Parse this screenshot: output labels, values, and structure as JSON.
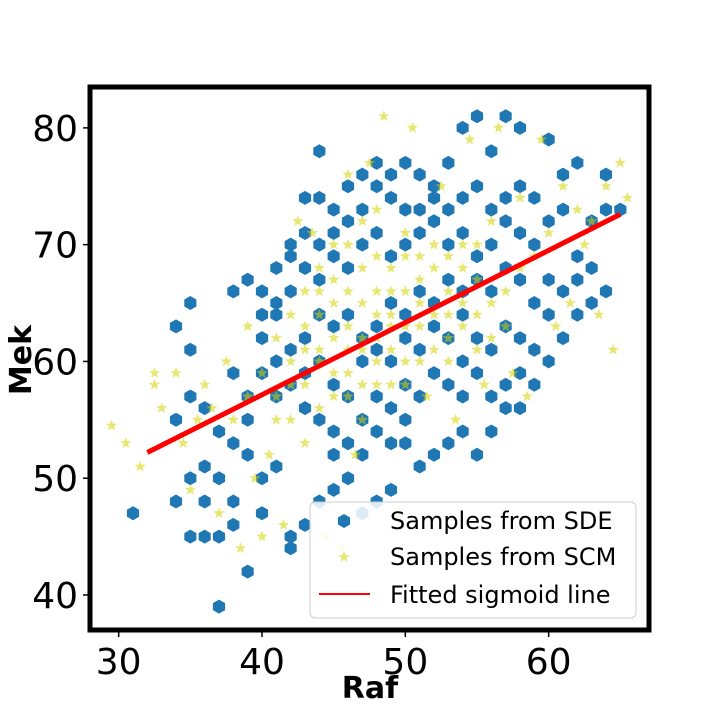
{
  "chart_data": {
    "type": "scatter",
    "xlabel": "Raf",
    "ylabel": "Mek",
    "xlim": [
      28,
      67
    ],
    "ylim": [
      37,
      83.5
    ],
    "xticks": [
      "30",
      "40",
      "50",
      "60"
    ],
    "xtick_values": [
      30,
      40,
      50,
      60
    ],
    "yticks": [
      "40",
      "50",
      "60",
      "70",
      "80"
    ],
    "ytick_values": [
      40,
      50,
      60,
      70,
      80
    ],
    "legend_position": "lower right",
    "series": [
      {
        "name": "Samples from SDE",
        "marker": "hexagon",
        "color": "#1f77b4",
        "points": [
          [
            31,
            47
          ],
          [
            34,
            48
          ],
          [
            35,
            45
          ],
          [
            36,
            45
          ],
          [
            37,
            45
          ],
          [
            37,
            39
          ],
          [
            39,
            42
          ],
          [
            35,
            50
          ],
          [
            36,
            51
          ],
          [
            36,
            48
          ],
          [
            34,
            55
          ],
          [
            35,
            57
          ],
          [
            35,
            61
          ],
          [
            35,
            65
          ],
          [
            34,
            63
          ],
          [
            36,
            56
          ],
          [
            37,
            54
          ],
          [
            38,
            59
          ],
          [
            38,
            66
          ],
          [
            39,
            67
          ],
          [
            38,
            48
          ],
          [
            38,
            46
          ],
          [
            40,
            47
          ],
          [
            40,
            64
          ],
          [
            41,
            65
          ],
          [
            42,
            70
          ],
          [
            43,
            74
          ],
          [
            44,
            74
          ],
          [
            44,
            78
          ],
          [
            45,
            73
          ],
          [
            46,
            75
          ],
          [
            47,
            76
          ],
          [
            48,
            77
          ],
          [
            49,
            74
          ],
          [
            50,
            73
          ],
          [
            51,
            76
          ],
          [
            52,
            75
          ],
          [
            53,
            77
          ],
          [
            54,
            80
          ],
          [
            55,
            81
          ],
          [
            56,
            78
          ],
          [
            57,
            81
          ],
          [
            58,
            80
          ],
          [
            60,
            79
          ],
          [
            61,
            76
          ],
          [
            62,
            77
          ],
          [
            64,
            73
          ],
          [
            65,
            73
          ],
          [
            64,
            76
          ],
          [
            63,
            72
          ],
          [
            62,
            69
          ],
          [
            63,
            68
          ],
          [
            64,
            66
          ],
          [
            62,
            64
          ],
          [
            61,
            62
          ],
          [
            60,
            64
          ],
          [
            59,
            58
          ],
          [
            58,
            59
          ],
          [
            57,
            56
          ],
          [
            56,
            54
          ],
          [
            55,
            52
          ],
          [
            54,
            54
          ],
          [
            53,
            53
          ],
          [
            52,
            52
          ],
          [
            51,
            51
          ],
          [
            50,
            53
          ],
          [
            49,
            49
          ],
          [
            48,
            48
          ],
          [
            47,
            47
          ],
          [
            46,
            50
          ],
          [
            45,
            49
          ],
          [
            44,
            48
          ],
          [
            43,
            46
          ],
          [
            42,
            45
          ],
          [
            42,
            44
          ],
          [
            41,
            51
          ],
          [
            40,
            50
          ],
          [
            39,
            55
          ],
          [
            39,
            57
          ],
          [
            40,
            59
          ],
          [
            41,
            57
          ],
          [
            42,
            58
          ],
          [
            43,
            56
          ],
          [
            44,
            60
          ],
          [
            45,
            58
          ],
          [
            46,
            57
          ],
          [
            47,
            55
          ],
          [
            48,
            57
          ],
          [
            49,
            56
          ],
          [
            50,
            58
          ],
          [
            51,
            57
          ],
          [
            52,
            59
          ],
          [
            53,
            58
          ],
          [
            54,
            60
          ],
          [
            55,
            62
          ],
          [
            56,
            61
          ],
          [
            57,
            63
          ],
          [
            58,
            62
          ],
          [
            59,
            65
          ],
          [
            60,
            67
          ],
          [
            59,
            70
          ],
          [
            58,
            71
          ],
          [
            57,
            72
          ],
          [
            56,
            70
          ],
          [
            55,
            69
          ],
          [
            54,
            71
          ],
          [
            53,
            70
          ],
          [
            52,
            72
          ],
          [
            51,
            71
          ],
          [
            50,
            70
          ],
          [
            49,
            69
          ],
          [
            48,
            71
          ],
          [
            47,
            70
          ],
          [
            46,
            68
          ],
          [
            45,
            69
          ],
          [
            44,
            67
          ],
          [
            43,
            68
          ],
          [
            42,
            66
          ],
          [
            41,
            64
          ],
          [
            40,
            62
          ],
          [
            43,
            62
          ],
          [
            44,
            64
          ],
          [
            45,
            63
          ],
          [
            46,
            64
          ],
          [
            47,
            62
          ],
          [
            48,
            63
          ],
          [
            49,
            65
          ],
          [
            50,
            64
          ],
          [
            51,
            66
          ],
          [
            52,
            65
          ],
          [
            53,
            67
          ],
          [
            54,
            66
          ],
          [
            55,
            67
          ],
          [
            56,
            66
          ],
          [
            57,
            68
          ],
          [
            58,
            67
          ],
          [
            47,
            60
          ],
          [
            48,
            61
          ],
          [
            49,
            60
          ],
          [
            50,
            62
          ],
          [
            51,
            61
          ],
          [
            52,
            63
          ],
          [
            53,
            62
          ],
          [
            54,
            64
          ],
          [
            45,
            54
          ],
          [
            46,
            53
          ],
          [
            47,
            52
          ],
          [
            48,
            54
          ],
          [
            49,
            53
          ],
          [
            50,
            55
          ],
          [
            41,
            60
          ],
          [
            42,
            61
          ],
          [
            43,
            59
          ],
          [
            44,
            55
          ],
          [
            45,
            52
          ],
          [
            39,
            52
          ],
          [
            38,
            53
          ],
          [
            37,
            50
          ],
          [
            61,
            73
          ],
          [
            60,
            72
          ],
          [
            59,
            74
          ],
          [
            58,
            75
          ],
          [
            57,
            74
          ],
          [
            56,
            73
          ],
          [
            55,
            75
          ],
          [
            54,
            74
          ],
          [
            53,
            73
          ],
          [
            52,
            74
          ],
          [
            51,
            73
          ],
          [
            50,
            77
          ],
          [
            49,
            76
          ],
          [
            48,
            75
          ],
          [
            47,
            73
          ],
          [
            46,
            72
          ],
          [
            45,
            71
          ],
          [
            44,
            70
          ],
          [
            43,
            71
          ],
          [
            42,
            69
          ],
          [
            41,
            68
          ],
          [
            40,
            66
          ],
          [
            61,
            66
          ],
          [
            62,
            67
          ],
          [
            63,
            65
          ],
          [
            60,
            60
          ],
          [
            59,
            61
          ],
          [
            58,
            56
          ],
          [
            57,
            58
          ],
          [
            56,
            57
          ],
          [
            55,
            59
          ],
          [
            54,
            57
          ]
        ]
      },
      {
        "name": "Samples from SCM",
        "marker": "star",
        "color": "#d4d400",
        "points": [
          [
            29.5,
            54.5
          ],
          [
            30.5,
            53
          ],
          [
            31.5,
            51
          ],
          [
            32.5,
            58
          ],
          [
            33,
            56
          ],
          [
            32.5,
            59
          ],
          [
            34,
            59
          ],
          [
            34.5,
            53
          ],
          [
            35,
            49
          ],
          [
            35.5,
            55
          ],
          [
            36,
            58
          ],
          [
            36.5,
            56
          ],
          [
            37,
            47
          ],
          [
            37.5,
            60
          ],
          [
            38,
            55
          ],
          [
            38.5,
            44
          ],
          [
            39,
            63
          ],
          [
            39.5,
            50
          ],
          [
            40,
            45
          ],
          [
            40.5,
            52
          ],
          [
            41,
            55
          ],
          [
            41.5,
            46
          ],
          [
            42,
            58
          ],
          [
            42.5,
            72
          ],
          [
            43,
            53
          ],
          [
            43.5,
            71
          ],
          [
            44,
            64
          ],
          [
            44.5,
            45
          ],
          [
            45,
            67
          ],
          [
            45.5,
            44
          ],
          [
            46,
            76
          ],
          [
            46.5,
            52
          ],
          [
            47,
            62
          ],
          [
            47.5,
            77
          ],
          [
            48,
            58
          ],
          [
            48.5,
            81
          ],
          [
            49,
            63
          ],
          [
            49.5,
            47
          ],
          [
            50,
            66
          ],
          [
            50.5,
            80
          ],
          [
            51,
            60
          ],
          [
            51.5,
            57
          ],
          [
            52,
            68
          ],
          [
            52.5,
            75
          ],
          [
            53,
            62
          ],
          [
            53.5,
            55
          ],
          [
            54,
            70
          ],
          [
            54.5,
            79
          ],
          [
            55,
            64
          ],
          [
            55.5,
            58
          ],
          [
            56,
            72
          ],
          [
            56.5,
            80
          ],
          [
            57,
            66
          ],
          [
            57.5,
            59
          ],
          [
            58,
            74
          ],
          [
            58.5,
            57
          ],
          [
            59,
            69
          ],
          [
            59.5,
            79
          ],
          [
            60,
            71
          ],
          [
            60.5,
            63
          ],
          [
            61,
            75
          ],
          [
            61.5,
            65
          ],
          [
            62,
            73
          ],
          [
            62.5,
            70
          ],
          [
            63,
            72
          ],
          [
            63.5,
            64
          ],
          [
            64,
            75
          ],
          [
            64.5,
            61
          ],
          [
            65,
            77
          ],
          [
            65.5,
            74
          ],
          [
            44,
            60
          ],
          [
            45,
            62
          ],
          [
            46,
            59
          ],
          [
            47,
            65
          ],
          [
            48,
            64
          ],
          [
            49,
            61
          ],
          [
            50,
            63
          ],
          [
            51,
            67
          ],
          [
            52,
            64
          ],
          [
            53,
            66
          ],
          [
            46,
            61
          ],
          [
            47,
            58
          ],
          [
            48,
            66
          ],
          [
            49,
            68
          ],
          [
            50,
            60
          ],
          [
            51,
            63
          ],
          [
            52,
            61
          ],
          [
            53,
            69
          ],
          [
            54,
            65
          ],
          [
            55,
            67
          ],
          [
            43,
            58
          ],
          [
            44,
            56
          ],
          [
            45,
            59
          ],
          [
            46,
            66
          ],
          [
            47,
            68
          ],
          [
            48,
            60
          ],
          [
            49,
            58
          ],
          [
            50,
            69
          ],
          [
            51,
            65
          ],
          [
            52,
            70
          ],
          [
            42,
            60
          ],
          [
            43,
            63
          ],
          [
            44,
            61
          ],
          [
            45,
            65
          ],
          [
            46,
            63
          ],
          [
            47,
            61
          ],
          [
            48,
            69
          ],
          [
            49,
            66
          ],
          [
            50,
            71
          ],
          [
            51,
            69
          ],
          [
            41,
            57
          ],
          [
            42,
            55
          ],
          [
            43,
            61
          ],
          [
            44,
            66
          ],
          [
            45,
            57
          ],
          [
            46,
            57
          ],
          [
            47,
            55
          ],
          [
            48,
            62
          ],
          [
            49,
            64
          ],
          [
            50,
            58
          ],
          [
            53,
            60
          ],
          [
            54,
            63
          ],
          [
            55,
            61
          ],
          [
            56,
            65
          ],
          [
            57,
            63
          ],
          [
            58,
            68
          ],
          [
            56,
            62
          ],
          [
            55,
            70
          ],
          [
            54,
            68
          ],
          [
            53,
            64
          ],
          [
            40,
            59
          ],
          [
            39,
            57
          ],
          [
            41,
            62
          ],
          [
            42,
            64
          ],
          [
            43,
            66
          ],
          [
            44,
            68
          ],
          [
            45,
            70
          ],
          [
            46,
            70
          ],
          [
            47,
            72
          ],
          [
            48,
            73
          ]
        ]
      },
      {
        "name": "Fitted sigmoid line",
        "marker": "line",
        "color": "#ff0000",
        "points": [
          [
            32,
            52.2
          ],
          [
            65,
            72.6
          ]
        ]
      }
    ]
  }
}
